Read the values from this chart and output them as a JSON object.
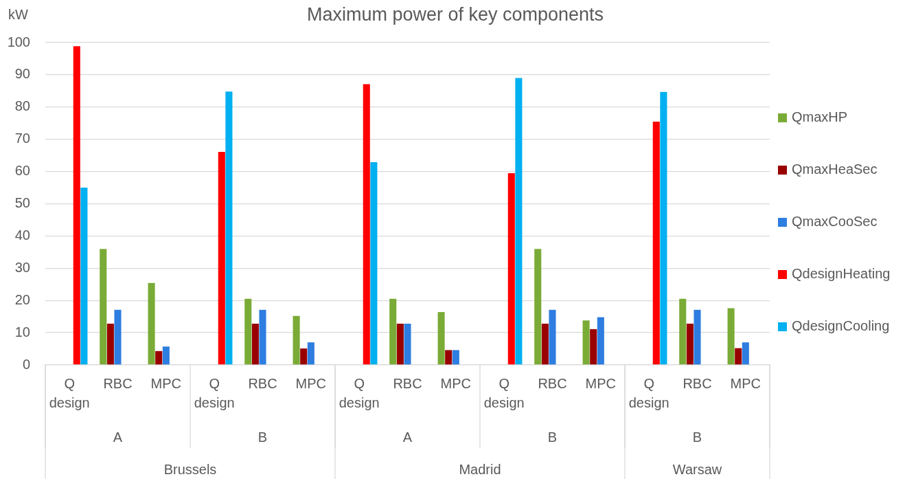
{
  "chart_data": {
    "type": "bar",
    "title": "Maximum power of key components",
    "ylabel": "kW",
    "categories": [
      "Q design",
      "RBC",
      "MPC",
      "Q design",
      "RBC",
      "MPC",
      "Q design",
      "RBC",
      "MPC",
      "Q design",
      "RBC",
      "MPC",
      "Q design",
      "RBC",
      "MPC"
    ],
    "series": [
      {
        "name": "QmaxHP",
        "color": "#7aab36",
        "values": [
          null,
          36.0,
          25.4,
          null,
          20.5,
          15.2,
          null,
          20.5,
          16.4,
          null,
          36.0,
          13.8,
          null,
          20.5,
          17.6
        ]
      },
      {
        "name": "QmaxHeaSec",
        "color": "#990000",
        "values": [
          null,
          12.8,
          4.3,
          null,
          12.8,
          5.1,
          null,
          12.8,
          4.6,
          null,
          12.8,
          11.1,
          null,
          12.8,
          5.2
        ]
      },
      {
        "name": "QmaxCooSec",
        "color": "#2e7de0",
        "values": [
          null,
          17.1,
          5.7,
          null,
          17.1,
          7.0,
          null,
          12.8,
          4.6,
          null,
          17.1,
          14.8,
          null,
          17.1,
          7.0
        ]
      },
      {
        "name": "QdesignHeating",
        "color": "#ff0000",
        "values": [
          98.9,
          null,
          null,
          66.1,
          null,
          null,
          87.1,
          null,
          null,
          59.5,
          null,
          null,
          75.5,
          null,
          null
        ]
      },
      {
        "name": "QdesignCooling",
        "color": "#00b0f0",
        "values": [
          55.0,
          null,
          null,
          84.8,
          null,
          null,
          62.9,
          null,
          null,
          89.0,
          null,
          null,
          84.7,
          null,
          null
        ]
      }
    ],
    "ylim": [
      0,
      100
    ],
    "yticks": [
      0,
      10,
      20,
      30,
      40,
      50,
      60,
      70,
      80,
      90,
      100
    ],
    "grid": "y",
    "legend": "right",
    "annotations": [
      "A",
      "B",
      "A",
      "B",
      "B",
      "Brussels",
      "Madrid",
      "Warsaw"
    ]
  }
}
